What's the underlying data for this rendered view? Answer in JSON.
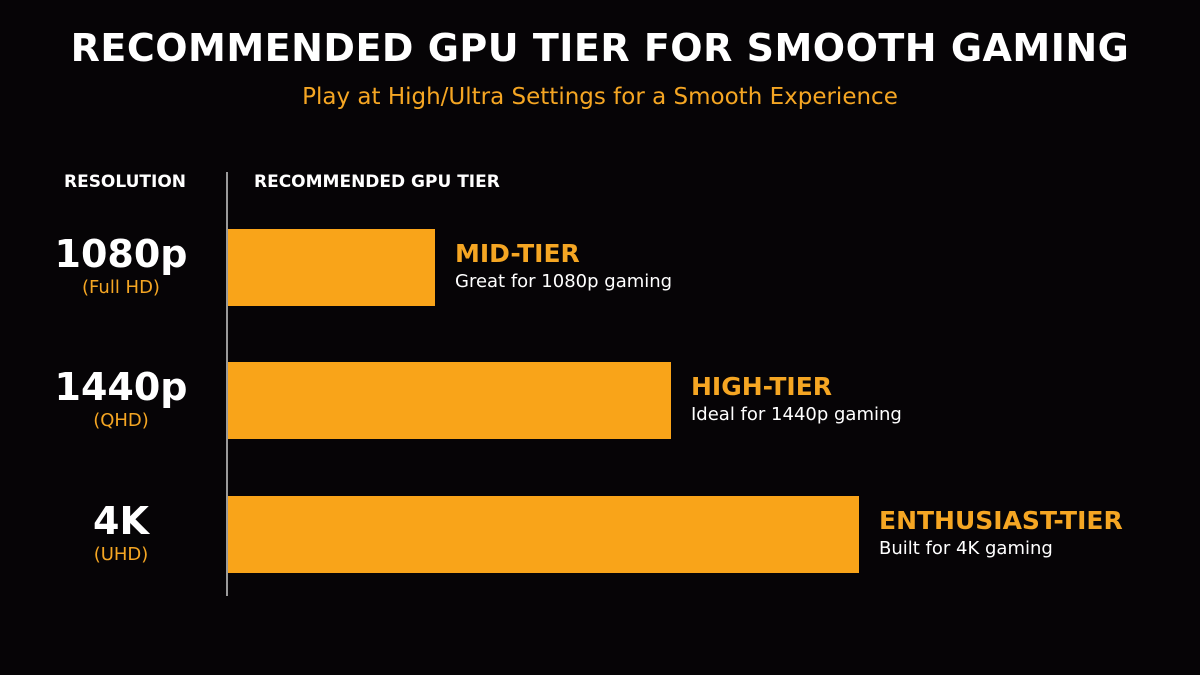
{
  "title": "RECOMMENDED GPU TIER FOR SMOOTH GAMING",
  "subtitle": "Play at High/Ultra Settings for a Smooth Experience",
  "headers": {
    "resolution": "RESOLUTION",
    "tier": "RECOMMENDED GPU TIER"
  },
  "colors": {
    "background": "#060406",
    "bar": "#f9a419",
    "accent_text": "#f5a623",
    "text": "#ffffff"
  },
  "chart_data": {
    "type": "bar",
    "orientation": "horizontal",
    "categories": [
      "1080p",
      "1440p",
      "4K"
    ],
    "category_sublabels": [
      "(Full HD)",
      "(QHD)",
      "(UHD)"
    ],
    "values": [
      1,
      2,
      3
    ],
    "value_meaning": "relative GPU tier level",
    "tier_labels": [
      "MID-TIER",
      "HIGH-TIER",
      "ENTHUSIAST-TIER"
    ],
    "tier_descriptions": [
      "Great for 1080p gaming",
      "Ideal for 1440p gaming",
      "Built for 4K gaming"
    ],
    "xlim": [
      0,
      3.3
    ],
    "grid": false,
    "legend": "none"
  }
}
